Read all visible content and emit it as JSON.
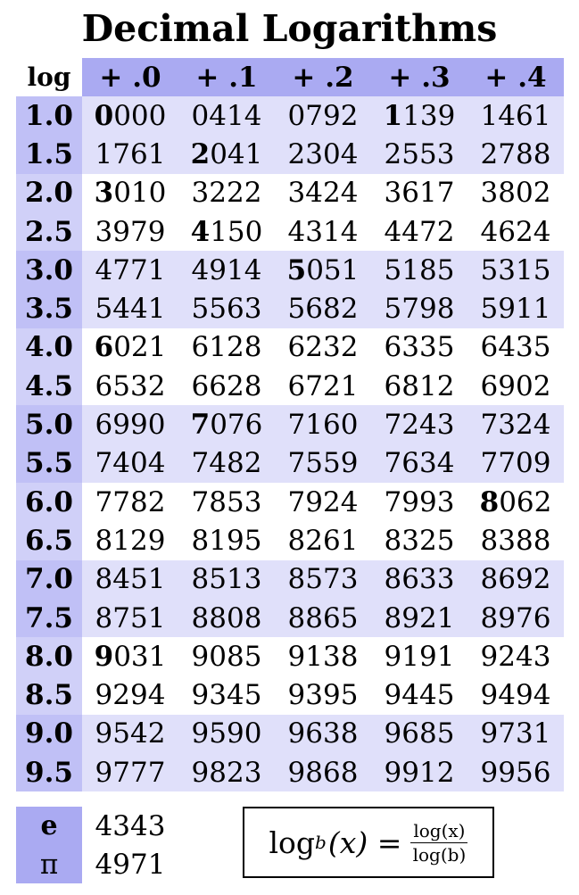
{
  "title": "Decimal Logarithms",
  "header": {
    "corner": "log",
    "columns": [
      "+ .0",
      "+ .1",
      "+ .2",
      "+ .3",
      "+ .4"
    ]
  },
  "rows": [
    {
      "label": "1.0",
      "cells": [
        {
          "lead": "0",
          "rest": "000"
        },
        {
          "lead": "",
          "rest": "0414"
        },
        {
          "lead": "",
          "rest": "0792"
        },
        {
          "lead": "1",
          "rest": "139"
        },
        {
          "lead": "",
          "rest": "1461"
        }
      ]
    },
    {
      "label": "1.5",
      "cells": [
        {
          "lead": "",
          "rest": "1761"
        },
        {
          "lead": "2",
          "rest": "041"
        },
        {
          "lead": "",
          "rest": "2304"
        },
        {
          "lead": "",
          "rest": "2553"
        },
        {
          "lead": "",
          "rest": "2788"
        }
      ]
    },
    {
      "label": "2.0",
      "cells": [
        {
          "lead": "3",
          "rest": "010"
        },
        {
          "lead": "",
          "rest": "3222"
        },
        {
          "lead": "",
          "rest": "3424"
        },
        {
          "lead": "",
          "rest": "3617"
        },
        {
          "lead": "",
          "rest": "3802"
        }
      ]
    },
    {
      "label": "2.5",
      "cells": [
        {
          "lead": "",
          "rest": "3979"
        },
        {
          "lead": "4",
          "rest": "150"
        },
        {
          "lead": "",
          "rest": "4314"
        },
        {
          "lead": "",
          "rest": "4472"
        },
        {
          "lead": "",
          "rest": "4624"
        }
      ]
    },
    {
      "label": "3.0",
      "cells": [
        {
          "lead": "",
          "rest": "4771"
        },
        {
          "lead": "",
          "rest": "4914"
        },
        {
          "lead": "5",
          "rest": "051"
        },
        {
          "lead": "",
          "rest": "5185"
        },
        {
          "lead": "",
          "rest": "5315"
        }
      ]
    },
    {
      "label": "3.5",
      "cells": [
        {
          "lead": "",
          "rest": "5441"
        },
        {
          "lead": "",
          "rest": "5563"
        },
        {
          "lead": "",
          "rest": "5682"
        },
        {
          "lead": "",
          "rest": "5798"
        },
        {
          "lead": "",
          "rest": "5911"
        }
      ]
    },
    {
      "label": "4.0",
      "cells": [
        {
          "lead": "6",
          "rest": "021"
        },
        {
          "lead": "",
          "rest": "6128"
        },
        {
          "lead": "",
          "rest": "6232"
        },
        {
          "lead": "",
          "rest": "6335"
        },
        {
          "lead": "",
          "rest": "6435"
        }
      ]
    },
    {
      "label": "4.5",
      "cells": [
        {
          "lead": "",
          "rest": "6532"
        },
        {
          "lead": "",
          "rest": "6628"
        },
        {
          "lead": "",
          "rest": "6721"
        },
        {
          "lead": "",
          "rest": "6812"
        },
        {
          "lead": "",
          "rest": "6902"
        }
      ]
    },
    {
      "label": "5.0",
      "cells": [
        {
          "lead": "",
          "rest": "6990"
        },
        {
          "lead": "7",
          "rest": "076"
        },
        {
          "lead": "",
          "rest": "7160"
        },
        {
          "lead": "",
          "rest": "7243"
        },
        {
          "lead": "",
          "rest": "7324"
        }
      ]
    },
    {
      "label": "5.5",
      "cells": [
        {
          "lead": "",
          "rest": "7404"
        },
        {
          "lead": "",
          "rest": "7482"
        },
        {
          "lead": "",
          "rest": "7559"
        },
        {
          "lead": "",
          "rest": "7634"
        },
        {
          "lead": "",
          "rest": "7709"
        }
      ]
    },
    {
      "label": "6.0",
      "cells": [
        {
          "lead": "",
          "rest": "7782"
        },
        {
          "lead": "",
          "rest": "7853"
        },
        {
          "lead": "",
          "rest": "7924"
        },
        {
          "lead": "",
          "rest": "7993"
        },
        {
          "lead": "8",
          "rest": "062"
        }
      ]
    },
    {
      "label": "6.5",
      "cells": [
        {
          "lead": "",
          "rest": "8129"
        },
        {
          "lead": "",
          "rest": "8195"
        },
        {
          "lead": "",
          "rest": "8261"
        },
        {
          "lead": "",
          "rest": "8325"
        },
        {
          "lead": "",
          "rest": "8388"
        }
      ]
    },
    {
      "label": "7.0",
      "cells": [
        {
          "lead": "",
          "rest": "8451"
        },
        {
          "lead": "",
          "rest": "8513"
        },
        {
          "lead": "",
          "rest": "8573"
        },
        {
          "lead": "",
          "rest": "8633"
        },
        {
          "lead": "",
          "rest": "8692"
        }
      ]
    },
    {
      "label": "7.5",
      "cells": [
        {
          "lead": "",
          "rest": "8751"
        },
        {
          "lead": "",
          "rest": "8808"
        },
        {
          "lead": "",
          "rest": "8865"
        },
        {
          "lead": "",
          "rest": "8921"
        },
        {
          "lead": "",
          "rest": "8976"
        }
      ]
    },
    {
      "label": "8.0",
      "cells": [
        {
          "lead": "9",
          "rest": "031"
        },
        {
          "lead": "",
          "rest": "9085"
        },
        {
          "lead": "",
          "rest": "9138"
        },
        {
          "lead": "",
          "rest": "9191"
        },
        {
          "lead": "",
          "rest": "9243"
        }
      ]
    },
    {
      "label": "8.5",
      "cells": [
        {
          "lead": "",
          "rest": "9294"
        },
        {
          "lead": "",
          "rest": "9345"
        },
        {
          "lead": "",
          "rest": "9395"
        },
        {
          "lead": "",
          "rest": "9445"
        },
        {
          "lead": "",
          "rest": "9494"
        }
      ]
    },
    {
      "label": "9.0",
      "cells": [
        {
          "lead": "",
          "rest": "9542"
        },
        {
          "lead": "",
          "rest": "9590"
        },
        {
          "lead": "",
          "rest": "9638"
        },
        {
          "lead": "",
          "rest": "9685"
        },
        {
          "lead": "",
          "rest": "9731"
        }
      ]
    },
    {
      "label": "9.5",
      "cells": [
        {
          "lead": "",
          "rest": "9777"
        },
        {
          "lead": "",
          "rest": "9823"
        },
        {
          "lead": "",
          "rest": "9868"
        },
        {
          "lead": "",
          "rest": "9912"
        },
        {
          "lead": "",
          "rest": "9956"
        }
      ]
    }
  ],
  "constants": [
    {
      "label": "e",
      "value": "4343"
    },
    {
      "label": "π",
      "value": "4971"
    }
  ],
  "formula": {
    "log": "log",
    "base": "b",
    "arg": "(x) =",
    "numerator": "log(x)",
    "denominator": "log(b)"
  },
  "colors": {
    "header": "#aaaaf2",
    "label_band": "#c0c0f6",
    "label_plain": "#d0d0f8",
    "band": "#e0e0fa",
    "plain": "#ffffff"
  }
}
